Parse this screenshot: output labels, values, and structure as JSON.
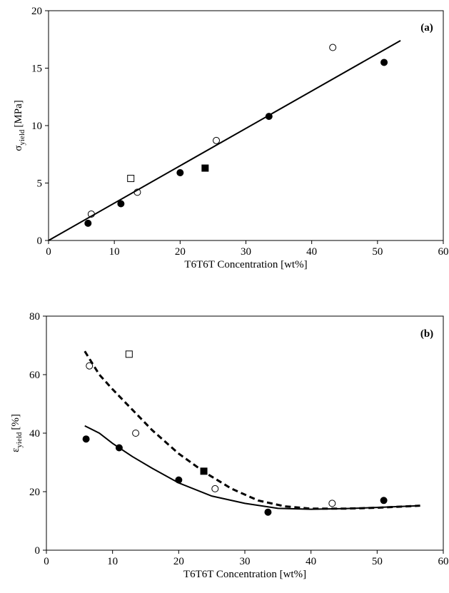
{
  "chart_data": [
    {
      "type": "scatter",
      "annotation": "(a)",
      "xlabel": "T6T6T Concentration  [wt%]",
      "ylabel_symbol": "σ",
      "ylabel_subscript": "yield",
      "ylabel_unit": "[MPa]",
      "xlim": [
        0,
        60
      ],
      "xticks": [
        0,
        10,
        20,
        30,
        40,
        50,
        60
      ],
      "ylim": [
        0,
        20
      ],
      "yticks": [
        0,
        5,
        10,
        15,
        20
      ],
      "color": "#000000",
      "series": [
        {
          "marker": "circle",
          "filled": true,
          "x": [
            6,
            11,
            20,
            33.5,
            51
          ],
          "values": [
            1.5,
            3.2,
            5.9,
            10.8,
            15.5
          ]
        },
        {
          "marker": "circle",
          "filled": false,
          "x": [
            6.5,
            13.5,
            25.5,
            43.2
          ],
          "values": [
            2.3,
            4.2,
            8.7,
            16.8
          ]
        },
        {
          "marker": "square",
          "filled": false,
          "x": [
            12.5
          ],
          "values": [
            5.4
          ]
        },
        {
          "marker": "square",
          "filled": true,
          "x": [
            23.8
          ],
          "values": [
            6.3
          ]
        },
        {
          "marker": "line",
          "style": "solid",
          "x": [
            0,
            53.5
          ],
          "values": [
            0,
            17.4
          ]
        }
      ]
    },
    {
      "type": "scatter",
      "annotation": "(b)",
      "xlabel": "T6T6T Concentration [wt%]",
      "ylabel_symbol": "ε",
      "ylabel_subscript": "yield",
      "ylabel_unit": "[%]",
      "xlim": [
        0,
        60
      ],
      "xticks": [
        0,
        10,
        20,
        30,
        40,
        50,
        60
      ],
      "ylim": [
        0,
        80
      ],
      "yticks": [
        0,
        20,
        40,
        60,
        80
      ],
      "color": "#000000",
      "series": [
        {
          "marker": "circle",
          "filled": true,
          "x": [
            6,
            11,
            20,
            33.5,
            51
          ],
          "values": [
            38,
            35,
            24,
            13,
            17
          ]
        },
        {
          "marker": "circle",
          "filled": false,
          "x": [
            6.5,
            13.5,
            25.5,
            43.2
          ],
          "values": [
            63,
            40,
            21,
            16
          ]
        },
        {
          "marker": "square",
          "filled": false,
          "x": [
            12.5
          ],
          "values": [
            67
          ]
        },
        {
          "marker": "square",
          "filled": true,
          "x": [
            23.8
          ],
          "values": [
            27
          ]
        },
        {
          "marker": "line",
          "style": "solid",
          "x": [
            5.8,
            8,
            10,
            13,
            16,
            20,
            25,
            30,
            35,
            40,
            45,
            50,
            56.5
          ],
          "values": [
            42.5,
            40,
            36.5,
            32,
            28,
            23,
            18.5,
            16,
            14.3,
            14,
            14.2,
            14.6,
            15.2
          ]
        },
        {
          "marker": "line",
          "style": "dashed",
          "x": [
            5.8,
            8,
            10,
            13,
            16,
            20,
            24,
            28,
            32,
            36,
            40,
            45,
            50,
            56.5
          ],
          "values": [
            68,
            60,
            55,
            48,
            41,
            33,
            26.5,
            21,
            17,
            15,
            14.2,
            14.2,
            14.5,
            15.2
          ]
        }
      ]
    }
  ]
}
